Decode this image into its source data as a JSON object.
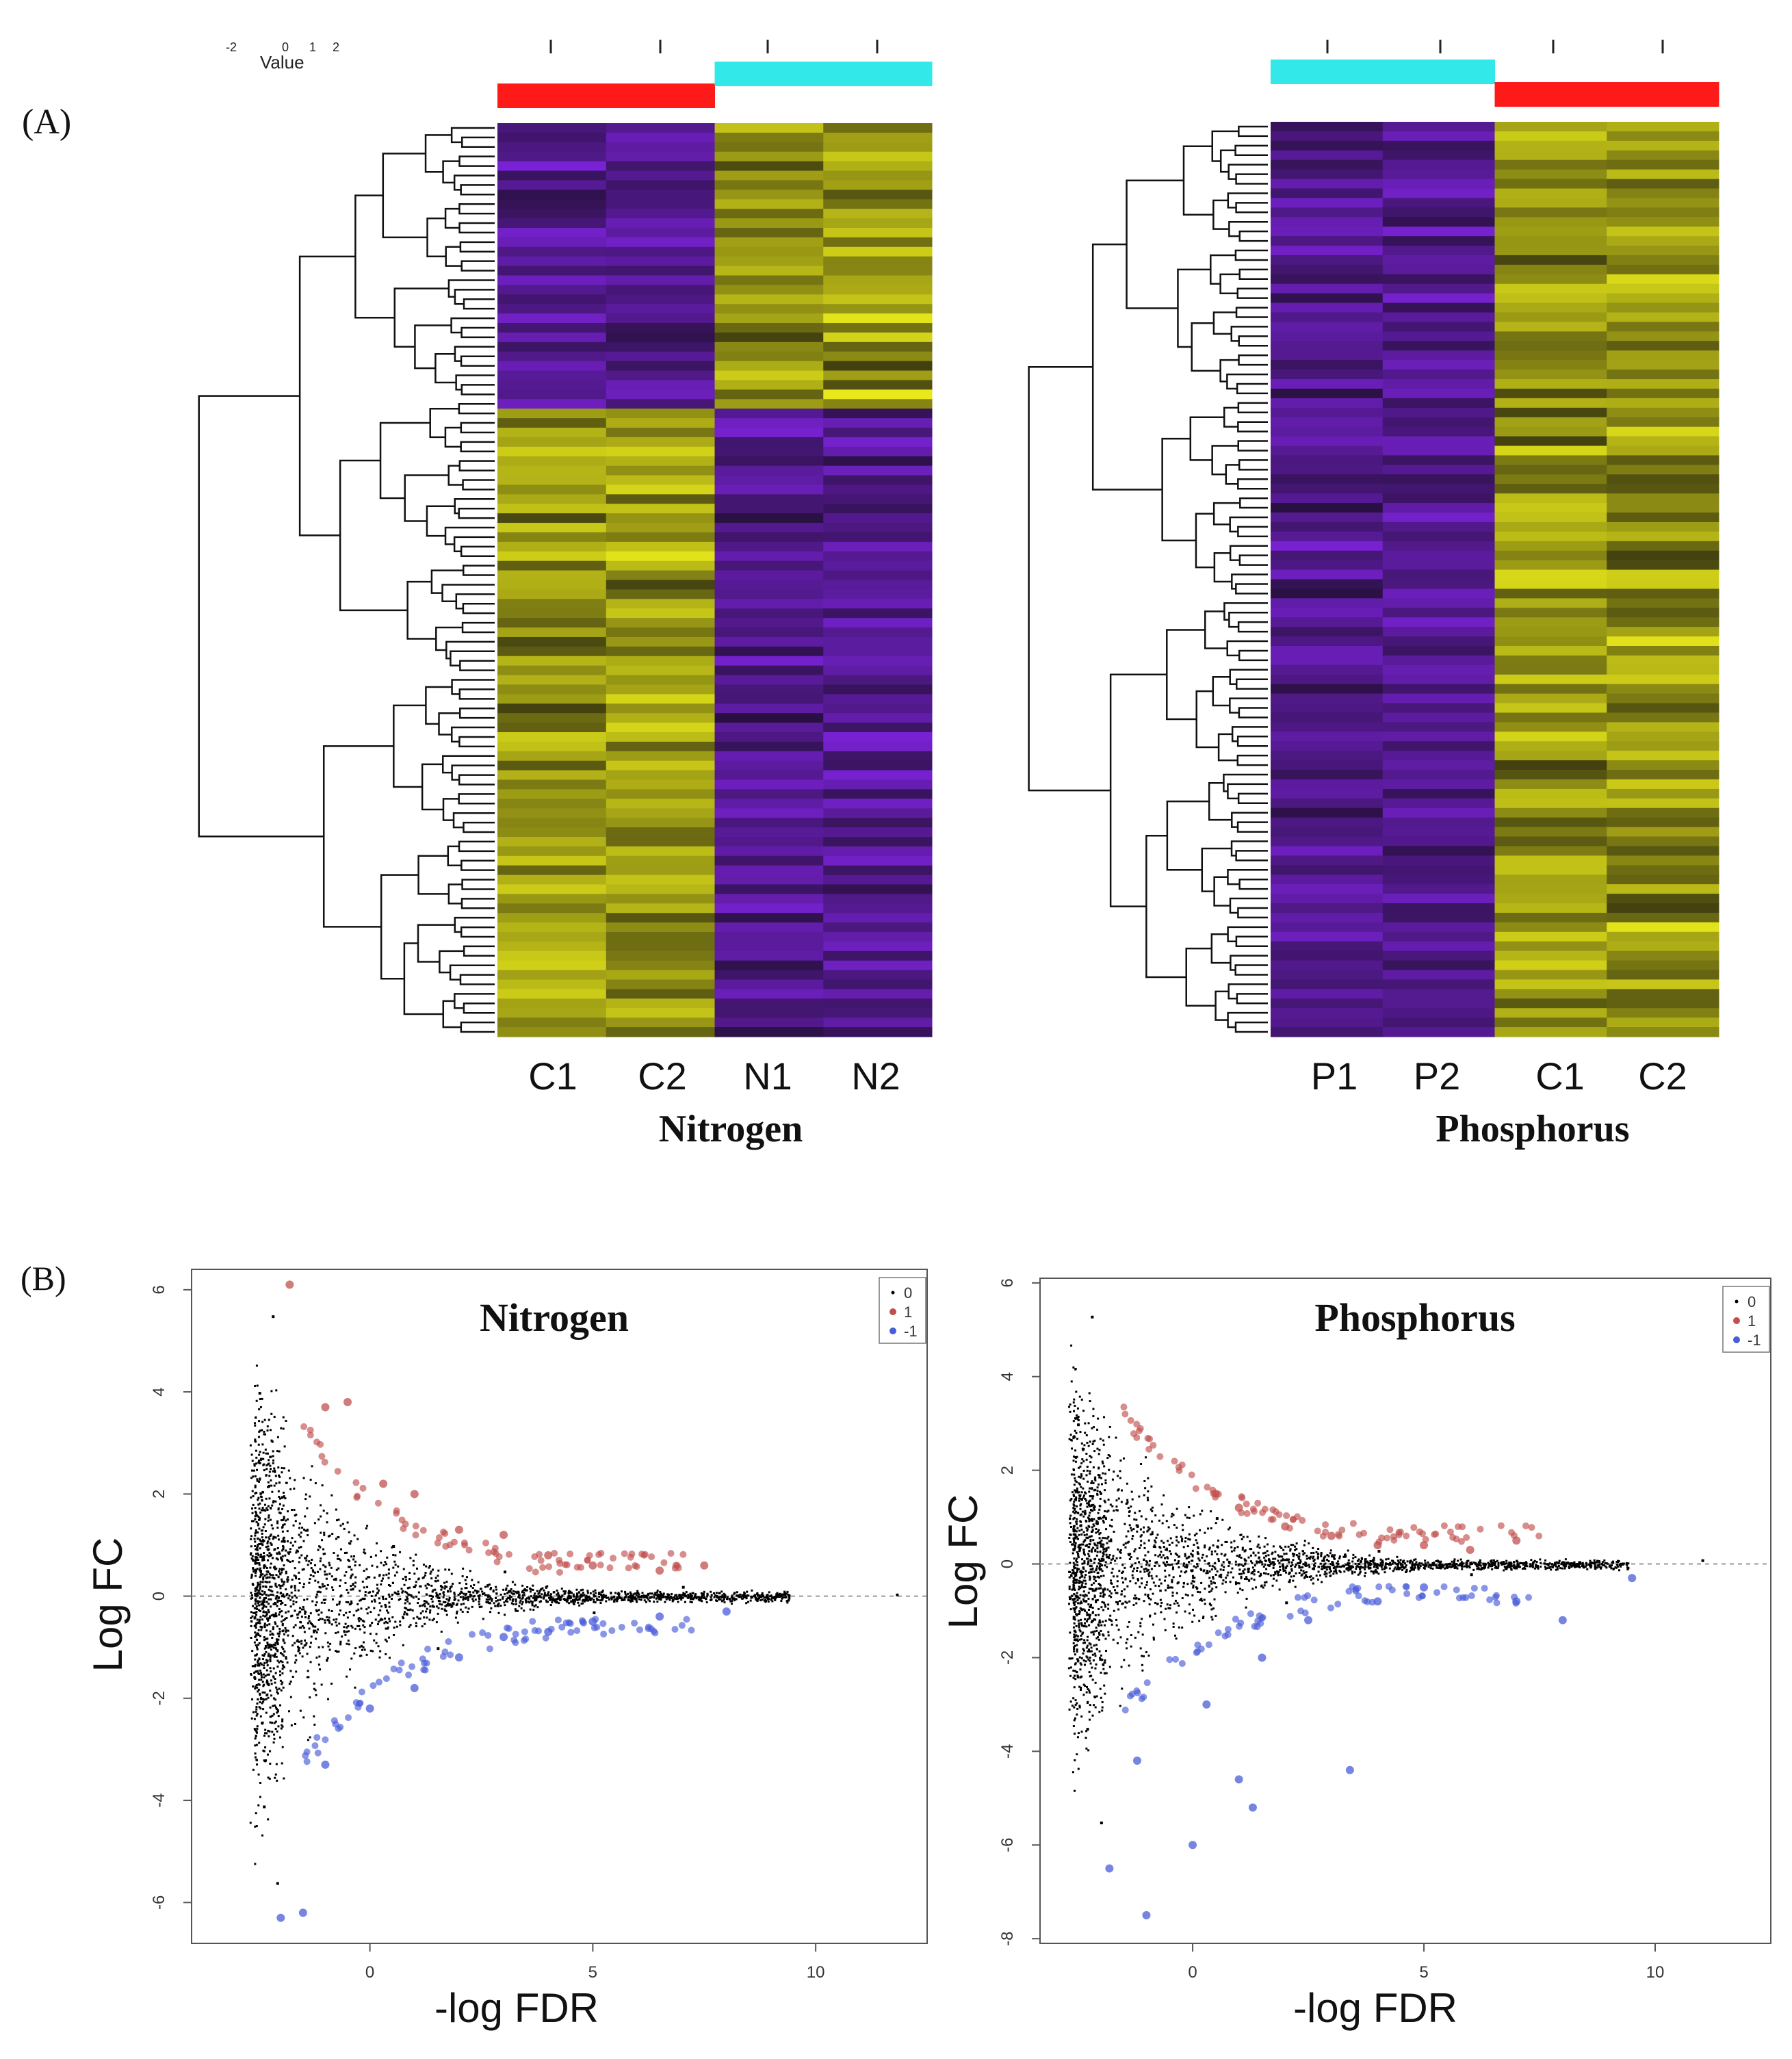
{
  "panel_labels": {
    "a": "(A)",
    "b": "(B)"
  },
  "colors": {
    "control_bar": "#ff1a1a",
    "treatment_bar": "#33e8e8",
    "low": "#7a22d6",
    "mid": "#0c0a0c",
    "high": "#e8e81a",
    "up_points": "#c0504d",
    "down_points": "#4a5cd8",
    "ns_points": "#000000"
  },
  "heatmap_key": {
    "title": "Value",
    "ticks": [
      "-2",
      "0",
      "1",
      "2"
    ]
  },
  "heatmaps": [
    {
      "id": "nitrogen",
      "title": "Nitrogen",
      "columns": [
        "C1",
        "C2",
        "N1",
        "N2"
      ],
      "column_groups": [
        "control",
        "control",
        "treatment",
        "treatment"
      ]
    },
    {
      "id": "phosphorus",
      "title": "Phosphorus",
      "columns": [
        "P1",
        "P2",
        "C1",
        "C2"
      ],
      "column_groups": [
        "treatment",
        "treatment",
        "control",
        "control"
      ]
    }
  ],
  "chart_data": [
    {
      "type": "scatter",
      "title": "Nitrogen",
      "xlabel": "-log FDR",
      "ylabel": "Log FC",
      "xlim": [
        -4,
        12.5
      ],
      "ylim": [
        -6.8,
        6.4
      ],
      "x_ticks": [
        "0",
        "5",
        "10"
      ],
      "y_ticks": [
        "-6",
        "-4",
        "-2",
        "0",
        "2",
        "4",
        "6"
      ],
      "legend": {
        "position": "top-right",
        "entries": [
          "0",
          "1",
          "-1"
        ]
      },
      "series": [
        {
          "name": "0",
          "description": "non-significant genes",
          "points": [
            [
              -2.2,
              5.5
            ],
            [
              -2.5,
              4.0
            ],
            [
              -2.4,
              -4.1
            ],
            [
              -2.1,
              -5.6
            ],
            [
              0.5,
              1.0
            ],
            [
              1.5,
              -1.0
            ],
            [
              3.0,
              0.5
            ],
            [
              5.0,
              -0.3
            ],
            [
              7.0,
              0.2
            ],
            [
              9.0,
              0.0
            ],
            [
              11.8,
              0.05
            ]
          ]
        },
        {
          "name": "1",
          "description": "up-regulated",
          "points": [
            [
              -1.8,
              6.1
            ],
            [
              -1.0,
              3.7
            ],
            [
              -0.5,
              3.8
            ],
            [
              0.3,
              2.2
            ],
            [
              1.0,
              2.0
            ],
            [
              2.0,
              1.3
            ],
            [
              3.0,
              1.2
            ],
            [
              4.0,
              0.8
            ],
            [
              5.0,
              0.6
            ],
            [
              6.5,
              0.5
            ],
            [
              7.5,
              0.6
            ]
          ]
        },
        {
          "name": "-1",
          "description": "down-regulated",
          "points": [
            [
              -2.0,
              -6.3
            ],
            [
              -1.5,
              -6.2
            ],
            [
              -1.0,
              -3.3
            ],
            [
              0.0,
              -2.2
            ],
            [
              1.0,
              -1.8
            ],
            [
              2.0,
              -1.2
            ],
            [
              3.0,
              -0.8
            ],
            [
              4.0,
              -0.7
            ],
            [
              5.0,
              -0.5
            ],
            [
              6.5,
              -0.4
            ],
            [
              8.0,
              -0.3
            ]
          ]
        }
      ]
    },
    {
      "type": "scatter",
      "title": "Phosphorus",
      "xlabel": "-log FDR",
      "ylabel": "Log FC",
      "xlim": [
        -3.3,
        12.5
      ],
      "ylim": [
        -8.1,
        6.1
      ],
      "x_ticks": [
        "0",
        "5",
        "10"
      ],
      "y_ticks": [
        "-8",
        "-6",
        "-4",
        "-2",
        "0",
        "2",
        "4",
        "6"
      ],
      "legend": {
        "position": "top-right",
        "entries": [
          "0",
          "1",
          "-1"
        ]
      },
      "series": [
        {
          "name": "0",
          "description": "non-significant genes",
          "points": [
            [
              -2.2,
              5.3
            ],
            [
              -2.5,
              3.0
            ],
            [
              -2.3,
              -3.5
            ],
            [
              -2.0,
              -5.5
            ],
            [
              0.5,
              1.0
            ],
            [
              2.0,
              -0.8
            ],
            [
              4.0,
              0.3
            ],
            [
              6.0,
              -0.2
            ],
            [
              8.0,
              0.0
            ],
            [
              11.0,
              0.1
            ]
          ]
        },
        {
          "name": "1",
          "description": "up-regulated",
          "points": [
            [
              0.5,
              1.5
            ],
            [
              1.0,
              1.2
            ],
            [
              2.0,
              0.8
            ],
            [
              3.0,
              0.6
            ],
            [
              4.0,
              0.4
            ],
            [
              5.0,
              0.4
            ],
            [
              6.0,
              0.3
            ],
            [
              7.0,
              0.5
            ]
          ]
        },
        {
          "name": "-1",
          "description": "down-regulated",
          "points": [
            [
              -1.8,
              -6.5
            ],
            [
              -1.0,
              -7.5
            ],
            [
              -1.2,
              -4.2
            ],
            [
              0.0,
              -6.0
            ],
            [
              0.3,
              -3.0
            ],
            [
              1.0,
              -4.6
            ],
            [
              1.3,
              -5.2
            ],
            [
              1.5,
              -2.0
            ],
            [
              2.5,
              -1.2
            ],
            [
              3.4,
              -4.4
            ],
            [
              4.0,
              -0.8
            ],
            [
              5.0,
              -0.5
            ],
            [
              7.0,
              -0.8
            ],
            [
              8.0,
              -1.2
            ],
            [
              9.5,
              -0.3
            ]
          ]
        }
      ]
    }
  ]
}
